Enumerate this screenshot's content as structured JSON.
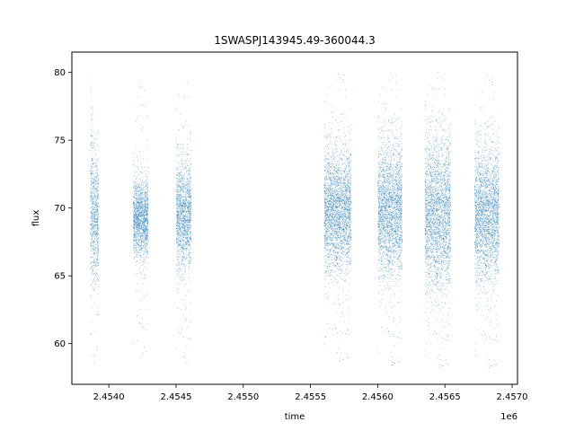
{
  "chart_data": {
    "type": "scatter",
    "title": "1SWASPJ143945.49-360044.3",
    "xlabel": "time",
    "ylabel": "flux",
    "x_offset_label": "1e6",
    "xlim": [
      2453725,
      2457040
    ],
    "ylim": [
      57.0,
      81.5
    ],
    "xticks": [
      2454000,
      2454500,
      2455000,
      2455500,
      2456000,
      2456500,
      2457000
    ],
    "xtick_labels": [
      "2.4540",
      "2.4545",
      "2.4550",
      "2.4555",
      "2.4560",
      "2.4565",
      "2.4570"
    ],
    "yticks": [
      60,
      65,
      70,
      75,
      80
    ],
    "ytick_labels": [
      "60",
      "65",
      "70",
      "75",
      "80"
    ],
    "grid": false,
    "marker_color": "#1f77b4",
    "series": [
      {
        "clusters": [
          {
            "x_range": [
              2453860,
              2453880
            ],
            "y_center": 70.0,
            "y_spread": 3.2,
            "y_min": 58.5,
            "y_max": 80.2
          },
          {
            "x_range": [
              2453880,
              2453920
            ],
            "y_center": 69.0,
            "y_spread": 2.4,
            "y_min": 58.0,
            "y_max": 76.0
          },
          {
            "x_range": [
              2454180,
              2454290
            ],
            "y_center": 69.2,
            "y_spread": 1.4,
            "y_min": 59.0,
            "y_max": 79.5
          },
          {
            "x_range": [
              2454500,
              2454610
            ],
            "y_center": 69.5,
            "y_spread": 2.0,
            "y_min": 58.2,
            "y_max": 79.6
          },
          {
            "x_range": [
              2455600,
              2455800
            ],
            "y_center": 69.8,
            "y_spread": 2.2,
            "y_min": 58.5,
            "y_max": 80.2
          },
          {
            "x_range": [
              2456000,
              2456180
            ],
            "y_center": 69.8,
            "y_spread": 2.4,
            "y_min": 58.2,
            "y_max": 80.2
          },
          {
            "x_range": [
              2456350,
              2456540
            ],
            "y_center": 69.5,
            "y_spread": 2.8,
            "y_min": 58.0,
            "y_max": 80.3
          },
          {
            "x_range": [
              2456720,
              2456900
            ],
            "y_center": 69.5,
            "y_spread": 2.4,
            "y_min": 58.0,
            "y_max": 80.0
          }
        ]
      }
    ]
  }
}
